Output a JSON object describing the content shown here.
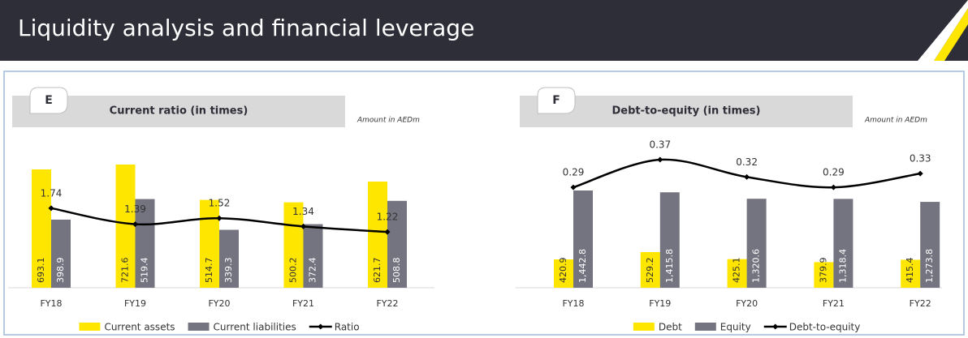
{
  "header": {
    "title": "Liquidity analysis and financial leverage"
  },
  "chart_data": [
    {
      "type": "bar",
      "letter": "E",
      "title": "Current ratio (in times)",
      "note": "Amount in AEDm",
      "categories": [
        "FY18",
        "FY19",
        "FY20",
        "FY21",
        "FY22"
      ],
      "ylim": [
        0,
        750
      ],
      "y2lim": [
        0,
        2.8
      ],
      "series": [
        {
          "name": "Current assets",
          "color": "#ffe600",
          "values": [
            693.1,
            721.6,
            514.7,
            500.2,
            621.7
          ]
        },
        {
          "name": "Current liabilities",
          "color": "#747480",
          "values": [
            398.9,
            519.4,
            339.3,
            372.4,
            508.8
          ]
        },
        {
          "name": "Ratio",
          "color": "#000000",
          "type": "line",
          "axis": "y2",
          "values": [
            1.74,
            1.39,
            1.52,
            1.34,
            1.22
          ]
        }
      ]
    },
    {
      "type": "bar",
      "letter": "F",
      "title": "Debt-to-equity (in times)",
      "note": "Amount in AEDm",
      "categories": [
        "FY18",
        "FY19",
        "FY20",
        "FY21",
        "FY22"
      ],
      "ylim": [
        0,
        1900
      ],
      "y2lim": [
        0,
        0.37
      ],
      "series": [
        {
          "name": "Debt",
          "color": "#ffe600",
          "values": [
            420.9,
            529.2,
            425.1,
            379.9,
            415.4
          ]
        },
        {
          "name": "Equity",
          "color": "#747480",
          "values": [
            1442.8,
            1415.8,
            1320.6,
            1318.4,
            1273.8
          ],
          "value_labels": [
            "1,442.8",
            "1,415.8",
            "1,320.6",
            "1,318.4",
            "1,273.8"
          ]
        },
        {
          "name": "Debt-to-equity",
          "color": "#000000",
          "type": "line",
          "axis": "y2",
          "values": [
            0.29,
            0.37,
            0.32,
            0.29,
            0.33
          ]
        }
      ]
    }
  ]
}
